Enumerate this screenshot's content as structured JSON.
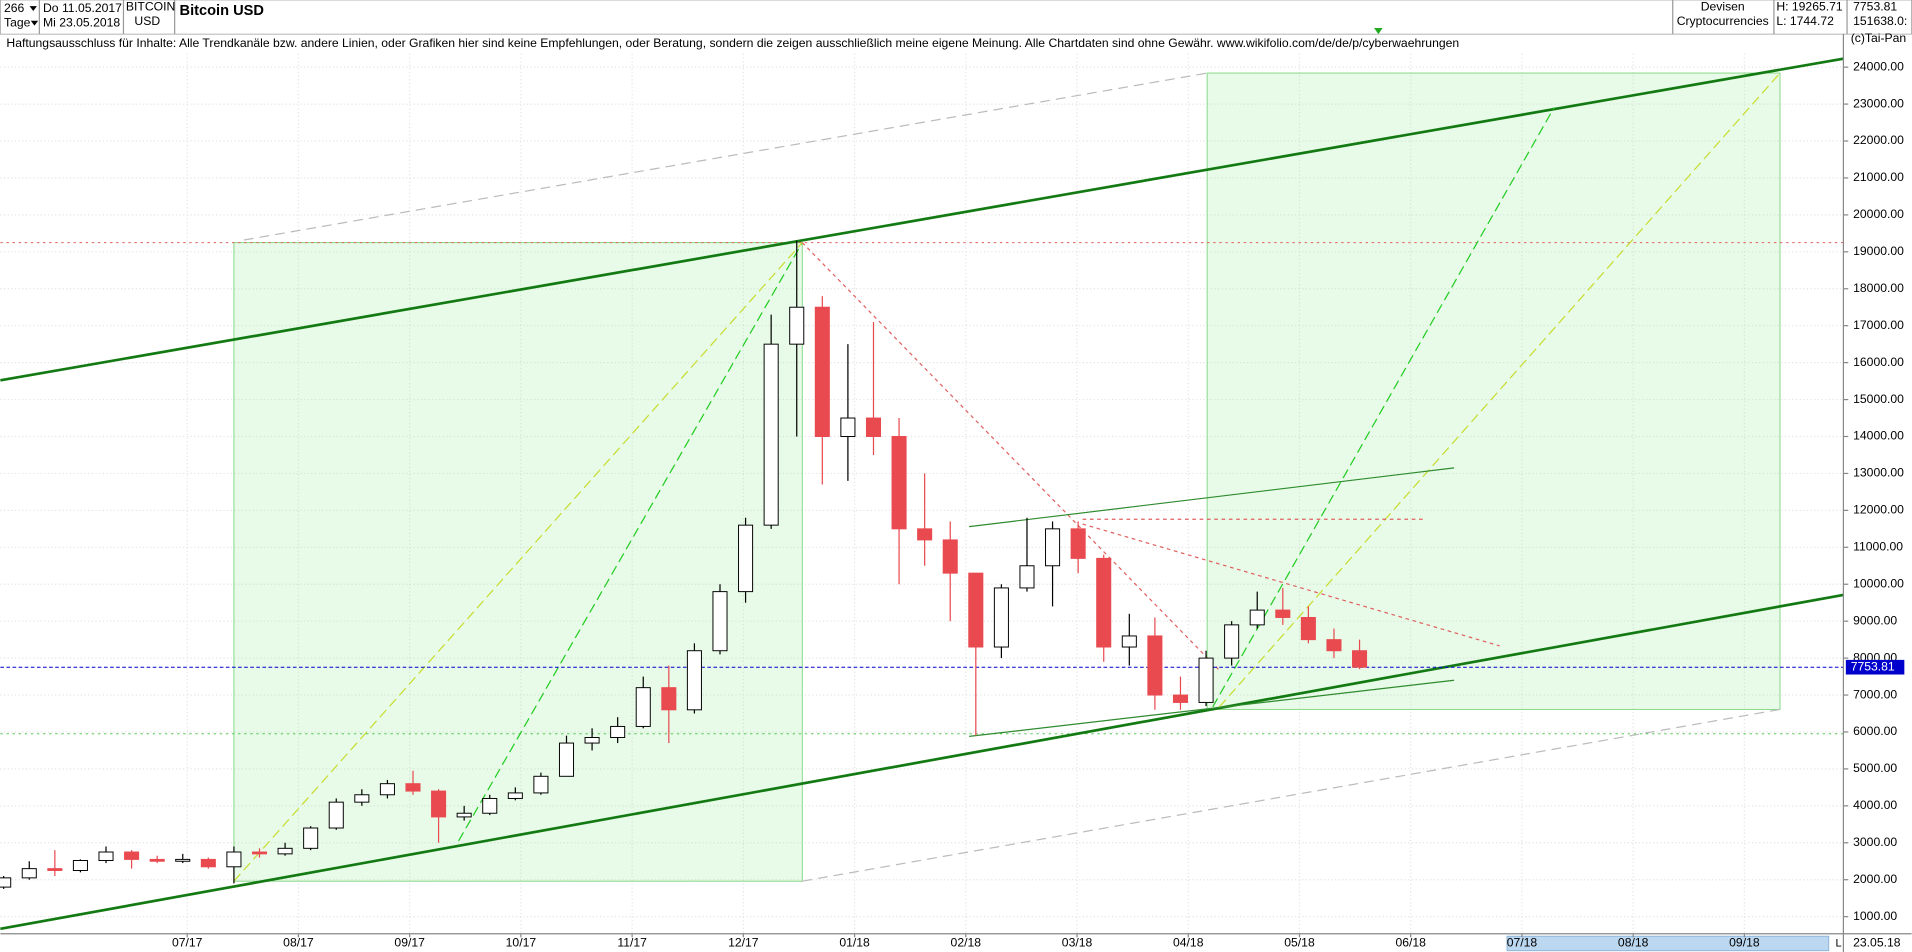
{
  "header": {
    "count": "266",
    "from": "Do 11.05.2017",
    "symbol": "BITCOIN",
    "currency": "USD",
    "period": "Tage",
    "to": "Mi 23.05.2018",
    "title": "Bitcoin USD",
    "group": "Devisen",
    "subgroup": "Cryptocurrencies",
    "high": "H: 19265.71",
    "low": "L: 1744.72",
    "last": "7753.81",
    "volume": "151638.0:"
  },
  "disclaimer": "Haftungsausschluss für Inhalte: Alle Trendkanäle bzw. andere Linien, oder Grafiken hier sind keine Empfehlungen, oder Beratung, sondern die zeigen ausschließlich meine eigene Meinung. Alle Chartdaten sind ohne Gewähr.  www.wikifolio.com/de/de/p/cyberwaehrungen",
  "copyright": "(c)Tai-Pan",
  "footer": {
    "date": "23.05.18",
    "scale": "L"
  },
  "chart_data": {
    "type": "candlestick",
    "title": "Bitcoin USD",
    "x": [
      5.35,
      5.58,
      5.81,
      6.04,
      6.27,
      6.5,
      6.73,
      6.96,
      7.19,
      7.42,
      7.65,
      7.88,
      8.11,
      8.34,
      8.57,
      8.8,
      9.03,
      9.26,
      9.49,
      9.72,
      9.95,
      10.18,
      10.41,
      10.64,
      10.87,
      11.1,
      11.33,
      11.56,
      11.79,
      12.02,
      12.25,
      12.48,
      12.71,
      12.94,
      13.17,
      13.4,
      13.63,
      13.86,
      14.09,
      14.32,
      14.55,
      14.78,
      15.01,
      15.24,
      15.47,
      15.7,
      15.93,
      16.16,
      16.39,
      16.62,
      16.85,
      17.08,
      17.31,
      17.54
    ],
    "open": [
      1800,
      2050,
      2300,
      2250,
      2520,
      2750,
      2550,
      2500,
      2550,
      2350,
      2750,
      2700,
      2850,
      3400,
      4100,
      4300,
      4600,
      4400,
      3700,
      3800,
      4200,
      4350,
      4800,
      5700,
      5850,
      6150,
      7200,
      6600,
      8200,
      9800,
      11600,
      16500,
      17500,
      14000,
      14500,
      14000,
      11500,
      11200,
      10300,
      8300,
      9900,
      10500,
      11500,
      10700,
      8300,
      8600,
      7000,
      6800,
      8000,
      8900,
      9300,
      9100,
      8500,
      8200
    ],
    "high": [
      2100,
      2500,
      2800,
      2550,
      2900,
      2800,
      2650,
      2700,
      2600,
      2900,
      2850,
      3000,
      3450,
      4200,
      4450,
      4700,
      4950,
      4450,
      4000,
      4300,
      4500,
      4900,
      5900,
      6100,
      6400,
      7500,
      7800,
      8400,
      10000,
      11800,
      17300,
      19300,
      17800,
      16500,
      17100,
      14500,
      13000,
      11700,
      10300,
      10000,
      11800,
      11700,
      11700,
      10800,
      9200,
      9100,
      7500,
      8200,
      9000,
      9800,
      9900,
      9400,
      8800,
      8500
    ],
    "low": [
      1750,
      2000,
      2100,
      2200,
      2450,
      2300,
      2450,
      2450,
      2300,
      1900,
      2600,
      2650,
      2800,
      3350,
      4000,
      4200,
      4300,
      3000,
      3600,
      3750,
      4150,
      4300,
      4800,
      5500,
      5700,
      6100,
      5700,
      6500,
      8100,
      9500,
      11500,
      14000,
      12700,
      12800,
      13500,
      10000,
      10500,
      9000,
      5900,
      8000,
      9800,
      9400,
      10300,
      7900,
      7800,
      6600,
      6600,
      6700,
      7800,
      8800,
      8900,
      8400,
      8000,
      7700
    ],
    "close": [
      2050,
      2300,
      2250,
      2520,
      2750,
      2550,
      2500,
      2550,
      2350,
      2750,
      2700,
      2850,
      3400,
      4100,
      4300,
      4600,
      4400,
      3700,
      3800,
      4200,
      4350,
      4800,
      5700,
      5850,
      6150,
      7200,
      6600,
      8200,
      9800,
      11600,
      16500,
      17500,
      14000,
      14500,
      14000,
      11500,
      11200,
      10300,
      8300,
      9900,
      10500,
      11500,
      10700,
      8300,
      8600,
      7000,
      6800,
      8000,
      8900,
      9300,
      9100,
      8500,
      8200,
      7753.81
    ],
    "up_color": "#ffffff",
    "down_color": "#e84a50",
    "wick_color": "#000000",
    "xlim": [
      5.32,
      21.89
    ],
    "xticks": [
      {
        "value": 7,
        "label": "07/17"
      },
      {
        "value": 8,
        "label": "08/17"
      },
      {
        "value": 9,
        "label": "09/17"
      },
      {
        "value": 10,
        "label": "10/17"
      },
      {
        "value": 11,
        "label": "11/17"
      },
      {
        "value": 12,
        "label": "12/17"
      },
      {
        "value": 13,
        "label": "01/18"
      },
      {
        "value": 14,
        "label": "02/18"
      },
      {
        "value": 15,
        "label": "03/18"
      },
      {
        "value": 16,
        "label": "04/18"
      },
      {
        "value": 17,
        "label": "05/18"
      },
      {
        "value": 18,
        "label": "06/18"
      },
      {
        "value": 19,
        "label": "07/18"
      },
      {
        "value": 20,
        "label": "08/18"
      },
      {
        "value": 21,
        "label": "09/18"
      }
    ],
    "ylim": [
      538,
      24894
    ],
    "yticks": [
      {
        "value": 1000,
        "label": "1000.00"
      },
      {
        "value": 2000,
        "label": "2000.00"
      },
      {
        "value": 3000,
        "label": "3000.00"
      },
      {
        "value": 4000,
        "label": "4000.00"
      },
      {
        "value": 5000,
        "label": "5000.00"
      },
      {
        "value": 6000,
        "label": "6000.00"
      },
      {
        "value": 7000,
        "label": "7000.00"
      },
      {
        "value": 8000,
        "label": "8000.00"
      },
      {
        "value": 9000,
        "label": "9000.00"
      },
      {
        "value": 10000,
        "label": "10000.00"
      },
      {
        "value": 11000,
        "label": "11000.00"
      },
      {
        "value": 12000,
        "label": "12000.00"
      },
      {
        "value": 13000,
        "label": "13000.00"
      },
      {
        "value": 14000,
        "label": "14000.00"
      },
      {
        "value": 15000,
        "label": "15000.00"
      },
      {
        "value": 16000,
        "label": "16000.00"
      },
      {
        "value": 17000,
        "label": "17000.00"
      },
      {
        "value": 18000,
        "label": "18000.00"
      },
      {
        "value": 19000,
        "label": "19000.00"
      },
      {
        "value": 20000,
        "label": "20000.00"
      },
      {
        "value": 21000,
        "label": "21000.00"
      },
      {
        "value": 22000,
        "label": "22000.00"
      },
      {
        "value": 23000,
        "label": "23000.00"
      },
      {
        "value": 24000,
        "label": "24000.00"
      }
    ],
    "grid": true,
    "last_price": 7753.81,
    "last_color": "#0000cc",
    "boxes": [
      {
        "x": [
          7.42,
          12.53
        ],
        "y": [
          1960,
          19250
        ]
      },
      {
        "x": [
          16.17,
          21.32
        ],
        "y": [
          6610,
          23840
        ]
      }
    ],
    "hlines": [
      {
        "value": 19250,
        "color": "#e06060"
      },
      {
        "value": 5950,
        "color": "#40c040"
      }
    ],
    "drawings": [
      {
        "x": [
          5.32,
          21.89
        ],
        "y": [
          15520,
          24230
        ],
        "color": "#137a13",
        "width": 2.2,
        "dash": "none"
      },
      {
        "x": [
          5.32,
          21.89
        ],
        "y": [
          670,
          9710
        ],
        "color": "#137a13",
        "width": 2.2,
        "dash": "none"
      },
      {
        "x": [
          7.51,
          16.17
        ],
        "y": [
          19320,
          23840
        ],
        "color": "#bbbbbb",
        "width": 1,
        "dash": "8 5"
      },
      {
        "x": [
          12.53,
          21.32
        ],
        "y": [
          1960,
          6610
        ],
        "color": "#bbbbbb",
        "width": 1,
        "dash": "8 5"
      },
      {
        "x": [
          9.44,
          12.53
        ],
        "y": [
          3050,
          19250
        ],
        "color": "#22cc22",
        "width": 1,
        "dash": "8 4"
      },
      {
        "x": [
          7.42,
          12.53
        ],
        "y": [
          1960,
          19250
        ],
        "color": "#c8dc30",
        "width": 1,
        "dash": "8 4"
      },
      {
        "x": [
          16.22,
          19.29
        ],
        "y": [
          6680,
          22910
        ],
        "color": "#22cc22",
        "width": 1,
        "dash": "8 4"
      },
      {
        "x": [
          16.28,
          21.32
        ],
        "y": [
          6680,
          23840
        ],
        "color": "#c8dc30",
        "width": 1,
        "dash": "8 4"
      },
      {
        "x": [
          12.53,
          16.28
        ],
        "y": [
          19250,
          7670
        ],
        "color": "#e06060",
        "width": 1,
        "dash": "3 3"
      },
      {
        "x": [
          15.05,
          18.8
        ],
        "y": [
          11630,
          8330
        ],
        "color": "#e06060",
        "width": 1,
        "dash": "3 3"
      },
      {
        "x": [
          15.05,
          18.12
        ],
        "y": [
          11760,
          11760
        ],
        "color": "#e06060",
        "width": 1,
        "dash": "3 3"
      },
      {
        "x": [
          14.03,
          18.39
        ],
        "y": [
          11560,
          13150
        ],
        "color": "#2e8b2e",
        "width": 1,
        "dash": "none"
      },
      {
        "x": [
          14.03,
          18.39
        ],
        "y": [
          5880,
          7400
        ],
        "color": "#2e8b2e",
        "width": 1,
        "dash": "none"
      }
    ]
  }
}
